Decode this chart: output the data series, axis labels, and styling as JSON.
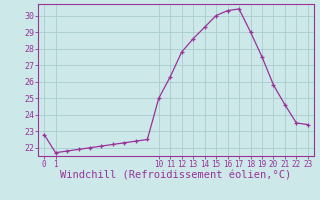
{
  "x": [
    0,
    1,
    2,
    3,
    4,
    5,
    6,
    7,
    8,
    9,
    10,
    11,
    12,
    13,
    14,
    15,
    16,
    17,
    18,
    19,
    20,
    21,
    22,
    23
  ],
  "y": [
    22.8,
    21.7,
    21.8,
    21.9,
    22.0,
    22.1,
    22.2,
    22.3,
    22.4,
    22.5,
    25.0,
    26.3,
    27.8,
    28.6,
    29.3,
    30.0,
    30.3,
    30.4,
    29.0,
    27.5,
    25.8,
    24.6,
    23.5,
    23.4
  ],
  "line_color": "#993399",
  "marker": "+",
  "marker_size": 3,
  "bg_color": "#cce8e8",
  "grid_color": "#aacccc",
  "xlabel": "Windchill (Refroidissement éolien,°C)",
  "xlabel_fontsize": 7.5,
  "ylim": [
    21.5,
    30.7
  ],
  "xtick_positions": [
    0,
    1,
    10,
    11,
    12,
    13,
    14,
    15,
    16,
    17,
    18,
    19,
    20,
    21,
    22,
    23
  ],
  "xtick_labels": [
    "0",
    "1",
    "10",
    "11",
    "12",
    "13",
    "14",
    "15",
    "16",
    "17",
    "18",
    "19",
    "20",
    "21",
    "22",
    "23"
  ],
  "ytick_positions": [
    22,
    23,
    24,
    25,
    26,
    27,
    28,
    29,
    30
  ],
  "axis_color": "#993399"
}
